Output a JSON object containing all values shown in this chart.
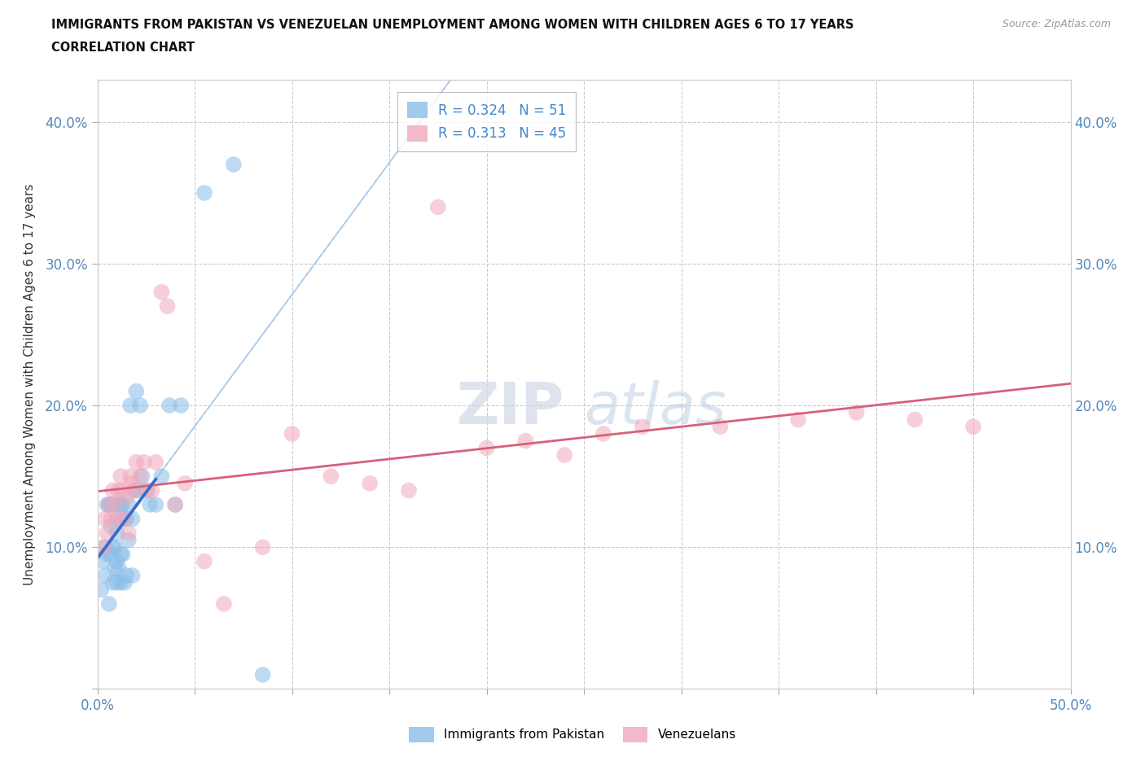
{
  "title_line1": "IMMIGRANTS FROM PAKISTAN VS VENEZUELAN UNEMPLOYMENT AMONG WOMEN WITH CHILDREN AGES 6 TO 17 YEARS",
  "title_line2": "CORRELATION CHART",
  "source_text": "Source: ZipAtlas.com",
  "ylabel": "Unemployment Among Women with Children Ages 6 to 17 years",
  "xlim": [
    0.0,
    0.5
  ],
  "ylim": [
    0.0,
    0.43
  ],
  "background_color": "#ffffff",
  "grid_color": "#cccccc",
  "blue_scatter_color": "#8abde8",
  "pink_scatter_color": "#f0a8bc",
  "blue_line_color": "#3a6cc8",
  "pink_line_color": "#d8607a",
  "dashed_line_color": "#a8c8e8",
  "legend_r1": "R = 0.324   N = 51",
  "legend_r2": "R = 0.313   N = 45",
  "watermark_zip": "ZIP",
  "watermark_atlas": "atlas",
  "pak_x": [
    0.002,
    0.003,
    0.004,
    0.004,
    0.005,
    0.005,
    0.006,
    0.006,
    0.007,
    0.007,
    0.007,
    0.008,
    0.008,
    0.008,
    0.009,
    0.009,
    0.01,
    0.01,
    0.01,
    0.01,
    0.011,
    0.011,
    0.012,
    0.012,
    0.012,
    0.013,
    0.013,
    0.014,
    0.014,
    0.015,
    0.015,
    0.016,
    0.016,
    0.017,
    0.018,
    0.018,
    0.019,
    0.02,
    0.021,
    0.022,
    0.023,
    0.025,
    0.027,
    0.03,
    0.033,
    0.037,
    0.04,
    0.043,
    0.055,
    0.07,
    0.085
  ],
  "pak_y": [
    0.07,
    0.09,
    0.08,
    0.1,
    0.095,
    0.13,
    0.06,
    0.13,
    0.095,
    0.115,
    0.13,
    0.075,
    0.1,
    0.13,
    0.085,
    0.1,
    0.075,
    0.09,
    0.11,
    0.13,
    0.085,
    0.12,
    0.075,
    0.095,
    0.13,
    0.095,
    0.13,
    0.075,
    0.12,
    0.08,
    0.12,
    0.105,
    0.13,
    0.2,
    0.08,
    0.12,
    0.14,
    0.21,
    0.14,
    0.2,
    0.15,
    0.14,
    0.13,
    0.13,
    0.15,
    0.2,
    0.13,
    0.2,
    0.35,
    0.37,
    0.01
  ],
  "ven_x": [
    0.003,
    0.004,
    0.005,
    0.006,
    0.007,
    0.008,
    0.009,
    0.01,
    0.011,
    0.012,
    0.013,
    0.014,
    0.015,
    0.016,
    0.017,
    0.018,
    0.019,
    0.02,
    0.022,
    0.024,
    0.026,
    0.028,
    0.03,
    0.033,
    0.036,
    0.04,
    0.045,
    0.055,
    0.065,
    0.085,
    0.1,
    0.12,
    0.14,
    0.16,
    0.175,
    0.2,
    0.22,
    0.24,
    0.26,
    0.28,
    0.32,
    0.36,
    0.39,
    0.42,
    0.45
  ],
  "ven_y": [
    0.1,
    0.12,
    0.11,
    0.13,
    0.12,
    0.14,
    0.13,
    0.12,
    0.14,
    0.15,
    0.14,
    0.12,
    0.135,
    0.11,
    0.15,
    0.145,
    0.14,
    0.16,
    0.15,
    0.16,
    0.14,
    0.14,
    0.16,
    0.28,
    0.27,
    0.13,
    0.145,
    0.09,
    0.06,
    0.1,
    0.18,
    0.15,
    0.145,
    0.14,
    0.34,
    0.17,
    0.175,
    0.165,
    0.18,
    0.185,
    0.185,
    0.19,
    0.195,
    0.19,
    0.185
  ]
}
